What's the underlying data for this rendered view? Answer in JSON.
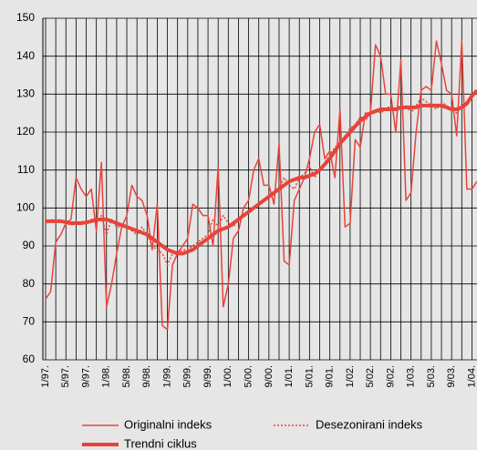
{
  "chart_data": {
    "type": "line",
    "categories": [
      "1/97.",
      null,
      null,
      null,
      "5/97.",
      null,
      null,
      null,
      "9/97.",
      null,
      null,
      null,
      "1/98.",
      null,
      null,
      null,
      "5/98.",
      null,
      null,
      null,
      "9/98.",
      null,
      null,
      null,
      "1/99.",
      null,
      null,
      null,
      "5/99.",
      null,
      null,
      null,
      "9/99.",
      null,
      null,
      null,
      "1/00.",
      null,
      null,
      null,
      "5/00.",
      null,
      null,
      null,
      "9/00.",
      null,
      null,
      null,
      "1/01.",
      null,
      null,
      null,
      "5/01.",
      null,
      null,
      null,
      "9/01.",
      null,
      null,
      null,
      "1/02.",
      null,
      null,
      null,
      "5/02.",
      null,
      null,
      null,
      "9/02.",
      null,
      null,
      null,
      "1/03.",
      null,
      null,
      null,
      "5/03.",
      null,
      null,
      null,
      "9/03.",
      null,
      null,
      null,
      "1/04.",
      null
    ],
    "series": [
      {
        "name": "Originalni indeks",
        "color": "#e8433a",
        "style": "thin",
        "values": [
          76,
          78,
          91,
          93,
          96,
          97,
          108,
          105,
          103,
          105,
          94,
          112,
          74,
          80,
          88,
          95,
          98,
          106,
          103,
          102,
          98,
          89,
          101,
          69,
          68,
          85,
          88,
          90,
          92,
          101,
          100,
          98,
          98,
          90,
          111,
          74,
          80,
          92,
          94,
          100,
          102,
          110,
          113,
          106,
          106,
          101,
          117,
          86,
          85,
          102,
          105,
          108,
          113,
          120,
          122,
          113,
          115,
          108,
          126,
          95,
          96,
          118,
          116,
          125,
          125,
          143,
          140,
          130,
          130,
          120,
          139,
          102,
          104,
          120,
          131,
          132,
          131,
          144,
          138,
          131,
          130,
          119,
          144,
          105,
          105,
          107
        ]
      },
      {
        "name": "Desezonirani indeks",
        "color": "#e8433a",
        "style": "dotted",
        "values": [
          96,
          97,
          96.5,
          97,
          96,
          95.5,
          96,
          96.5,
          96,
          97,
          96,
          98,
          93,
          97,
          95,
          95,
          95,
          94,
          93,
          95,
          93,
          90,
          89,
          88,
          85,
          88,
          88,
          89,
          89,
          90,
          91,
          92,
          93,
          97,
          95,
          98,
          96,
          95,
          97,
          98,
          99,
          100,
          101,
          102,
          103,
          104,
          105,
          108,
          106,
          105,
          108,
          109,
          111,
          108,
          110,
          112,
          114,
          116,
          117,
          119,
          121,
          122,
          124,
          123,
          125,
          126,
          125,
          126,
          127,
          126,
          126,
          127,
          125,
          127,
          129,
          128,
          127,
          126,
          128,
          127,
          126,
          125,
          127,
          128,
          130,
          131
        ]
      },
      {
        "name": "Trendni ciklus",
        "color": "#e8433a",
        "style": "thick",
        "values": [
          96.5,
          96.5,
          96.5,
          96.5,
          96.3,
          96,
          96,
          96,
          96.2,
          96.5,
          97,
          97,
          97,
          96.5,
          96,
          95.5,
          95,
          94.5,
          94,
          93.5,
          93,
          92,
          91,
          90,
          89,
          88.5,
          88,
          88,
          88.5,
          89,
          90,
          91,
          92,
          93,
          94,
          94.5,
          95,
          96,
          97,
          98,
          99,
          100,
          101,
          102,
          103,
          104,
          105,
          106,
          107,
          107.5,
          108,
          108,
          108.5,
          109,
          110,
          111.5,
          113,
          115,
          117,
          118.5,
          120,
          121.5,
          123,
          124,
          125,
          125.5,
          126,
          126,
          126,
          126,
          126.5,
          126.5,
          126.5,
          126.5,
          127,
          127,
          127,
          127,
          127,
          126.5,
          126,
          126,
          126.5,
          127.5,
          129.5,
          131
        ]
      }
    ],
    "ylim": [
      60,
      150
    ],
    "yticks": [
      60,
      70,
      80,
      90,
      100,
      110,
      120,
      130,
      140,
      150
    ],
    "grid": true
  }
}
